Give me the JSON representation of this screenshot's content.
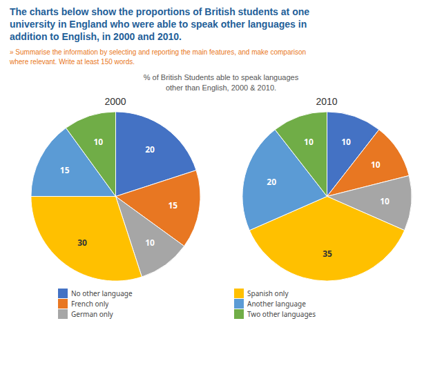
{
  "title": "The charts below show the proportions of British students at one\nuniversity in England who were able to speak other languages in\naddition to English, in 2000 and 2010.",
  "subtitle": "» Summarise the information by selecting and reporting the main features, and make comparison\nwhere relevant. Write at least 150 words.",
  "chart_title": "% of British Students able to speak languages\nother than English, 2000 & 2010.",
  "legend": "bottom",
  "chart_data": [
    {
      "type": "pie",
      "title": "2000",
      "categories": [
        "No other language",
        "French only",
        "German only",
        "Spanish only",
        "Another language",
        "Two other languages"
      ],
      "values": [
        20,
        15,
        10,
        30,
        15,
        10
      ],
      "colors": [
        "#4472C4",
        "#E87722",
        "#A6A6A6",
        "#FFC000",
        "#5B9BD5",
        "#70AD47"
      ],
      "data_labels": true
    },
    {
      "type": "pie",
      "title": "2010",
      "categories": [
        "No other language",
        "French only",
        "German only",
        "Spanish only",
        "Another language",
        "Two other languages"
      ],
      "values": [
        10,
        10,
        10,
        35,
        20,
        10
      ],
      "colors": [
        "#4472C4",
        "#E87722",
        "#A6A6A6",
        "#FFC000",
        "#5B9BD5",
        "#70AD47"
      ],
      "data_labels": true
    }
  ]
}
